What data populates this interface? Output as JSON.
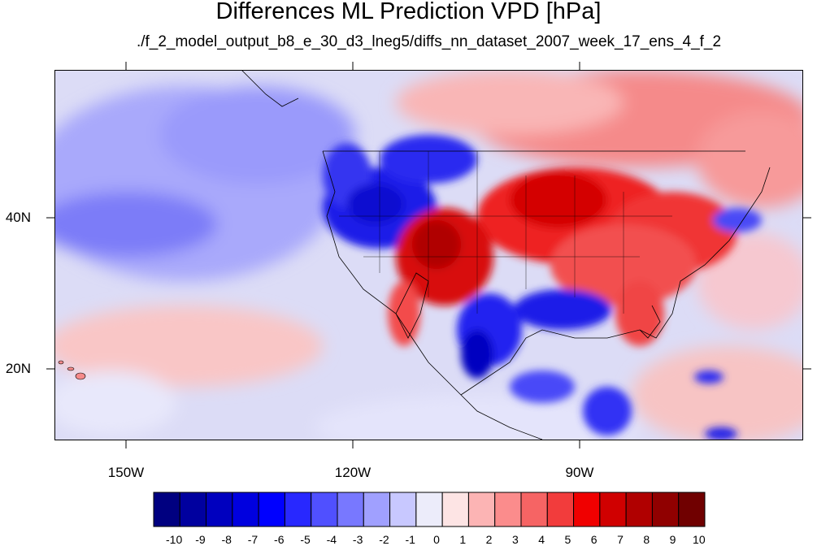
{
  "title": "Differences ML Prediction VPD [hPa]",
  "subtitle": "./f_2_model_output_b8_e_30_d3_lneg5/diffs_nn_dataset_2007_week_17_ens_4_f_2",
  "axes": {
    "lat_labels": [
      "40N",
      "20N"
    ],
    "lon_labels": [
      "150W",
      "120W",
      "90W"
    ]
  },
  "colorbar": {
    "labels": [
      "-10",
      "-9",
      "-8",
      "-7",
      "-6",
      "-5",
      "-4",
      "-3",
      "-2",
      "-1",
      "0",
      "1",
      "2",
      "3",
      "4",
      "5",
      "6",
      "7",
      "8",
      "9",
      "10"
    ],
    "colors": [
      "#000080",
      "#00009f",
      "#0000bf",
      "#0000df",
      "#0000ff",
      "#2828ff",
      "#5050ff",
      "#7878ff",
      "#a0a0ff",
      "#c8c8ff",
      "#ececfa",
      "#fde4e4",
      "#fcb4b4",
      "#fb8c8c",
      "#f66464",
      "#f23c3c",
      "#f00000",
      "#d00000",
      "#b00000",
      "#900000",
      "#700000"
    ]
  },
  "colors": {
    "land_outline": "#000000",
    "ocean_base": "#dcdcf6"
  }
}
